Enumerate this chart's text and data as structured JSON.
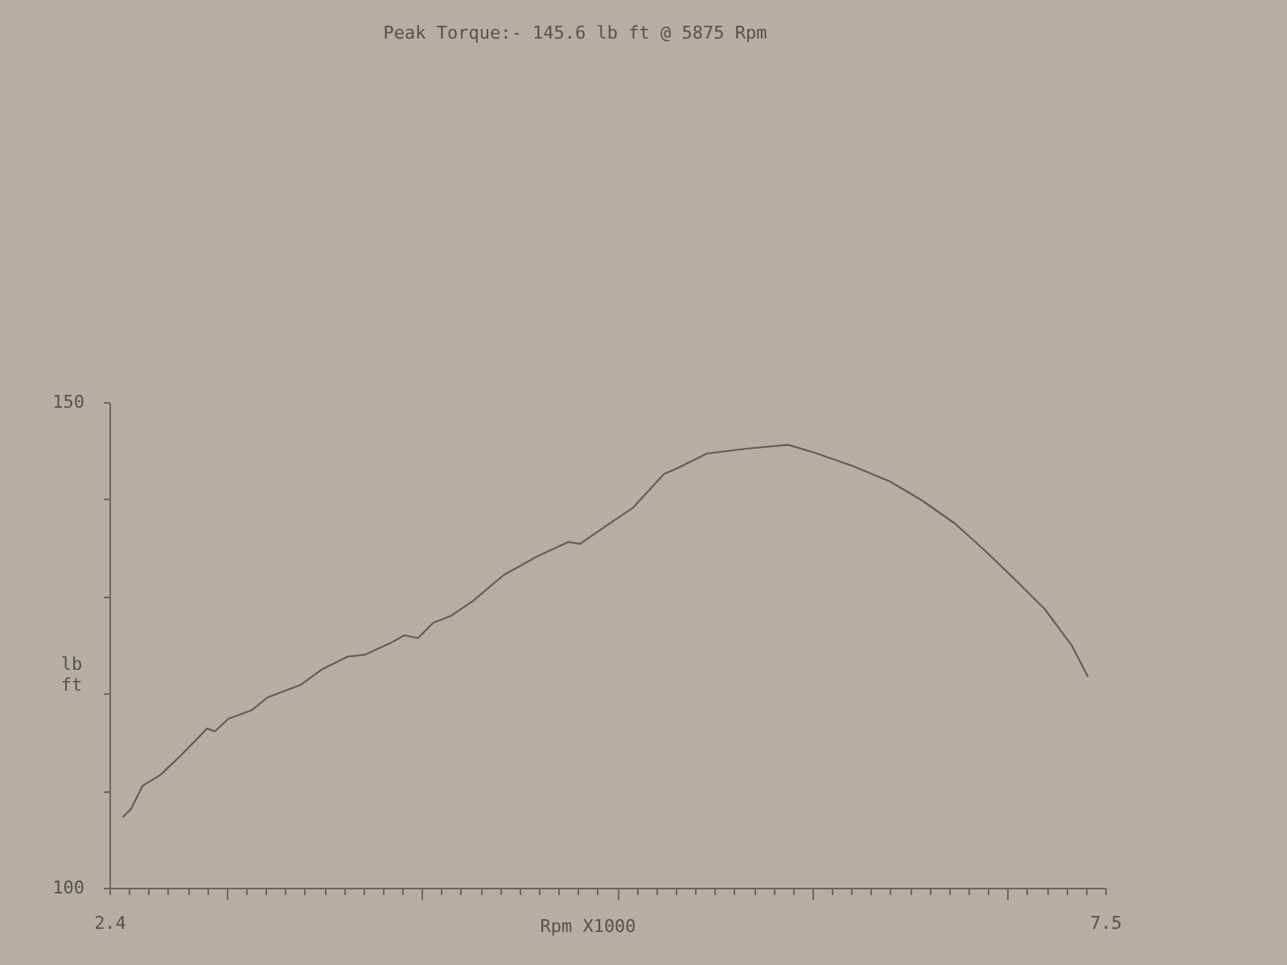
{
  "chart_data": {
    "type": "line",
    "title": "Peak Torque:- 145.6 lb ft @ 5875 Rpm",
    "xlabel": "Rpm X1000",
    "ylabel": "lb ft",
    "x": [
      2.47,
      2.51,
      2.57,
      2.66,
      2.77,
      2.9,
      2.94,
      3.01,
      3.13,
      3.21,
      3.38,
      3.49,
      3.62,
      3.71,
      3.84,
      3.91,
      3.98,
      4.06,
      4.15,
      4.26,
      4.42,
      4.59,
      4.75,
      4.81,
      4.94,
      5.08,
      5.24,
      5.3,
      5.46,
      5.66,
      5.875,
      6.01,
      6.21,
      6.4,
      6.56,
      6.73,
      6.89,
      7.06,
      7.19,
      7.33,
      7.41
    ],
    "series": [
      {
        "color": "#625d57",
        "values": [
          107.3,
          108.1,
          110.5,
          111.6,
          113.7,
          116.4,
          116.1,
          117.4,
          118.3,
          119.6,
          120.9,
          122.5,
          123.8,
          124.0,
          125.2,
          126.0,
          125.7,
          127.3,
          128.0,
          129.5,
          132.2,
          134.1,
          135.6,
          135.4,
          137.2,
          139.1,
          142.6,
          143.1,
          144.7,
          145.2,
          145.6,
          144.8,
          143.4,
          141.8,
          139.9,
          137.5,
          134.6,
          131.3,
          128.7,
          124.9,
          121.8
        ]
      }
    ],
    "xlim": [
      2.4,
      7.5
    ],
    "xticks": [
      2.4,
      {
        "value": 2.5,
        "label": null
      },
      {
        "value": 2.6,
        "label": null
      },
      {
        "value": 2.7,
        "label": null
      },
      {
        "value": 2.8,
        "label": null
      },
      {
        "value": 2.9,
        "label": null
      },
      {
        "value": 3,
        "label": null
      },
      {
        "value": 3.1,
        "label": null
      },
      {
        "value": 3.2,
        "label": null
      },
      {
        "value": 3.3,
        "label": null
      },
      {
        "value": 3.4,
        "label": null
      },
      {
        "value": 3.5,
        "label": null
      },
      {
        "value": 3.6,
        "label": null
      },
      {
        "value": 3.7,
        "label": null
      },
      {
        "value": 3.8,
        "label": null
      },
      {
        "value": 3.9,
        "label": null
      },
      {
        "value": 4,
        "label": null
      },
      {
        "value": 4.1,
        "label": null
      },
      {
        "value": 4.2,
        "label": null
      },
      {
        "value": 4.3,
        "label": null
      },
      {
        "value": 4.4,
        "label": null
      },
      {
        "value": 4.5,
        "label": null
      },
      {
        "value": 4.6,
        "label": null
      },
      {
        "value": 4.7,
        "label": null
      },
      {
        "value": 4.8,
        "label": null
      },
      {
        "value": 4.9,
        "label": null
      },
      {
        "value": 5,
        "label": null
      },
      {
        "value": 5.1,
        "label": null
      },
      {
        "value": 5.2,
        "label": null
      },
      {
        "value": 5.3,
        "label": null
      },
      {
        "value": 5.4,
        "label": null
      },
      {
        "value": 5.5,
        "label": null
      },
      {
        "value": 5.6,
        "label": null
      },
      {
        "value": 5.7,
        "label": null
      },
      {
        "value": 5.8,
        "label": null
      },
      {
        "value": 5.9,
        "label": null
      },
      {
        "value": 6,
        "label": null
      },
      {
        "value": 6.1,
        "label": null
      },
      {
        "value": 6.2,
        "label": null
      },
      {
        "value": 6.3,
        "label": null
      },
      {
        "value": 6.4,
        "label": null
      },
      {
        "value": 6.5,
        "label": null
      },
      {
        "value": 6.6,
        "label": null
      },
      {
        "value": 6.7,
        "label": null
      },
      {
        "value": 6.8,
        "label": null
      },
      {
        "value": 6.9,
        "label": null
      },
      {
        "value": 7,
        "label": null
      },
      {
        "value": 7.1,
        "label": null
      },
      {
        "value": 7.2,
        "label": null
      },
      {
        "value": 7.3,
        "label": null
      },
      {
        "value": 7.4,
        "label": null
      },
      7.5
    ],
    "ylim": [
      100,
      150
    ],
    "yticks": [
      100,
      {
        "value": 110,
        "label": null
      },
      {
        "value": 120,
        "label": null
      },
      {
        "value": 130,
        "label": null
      },
      {
        "value": 140,
        "label": null
      },
      150
    ],
    "grid": false
  }
}
